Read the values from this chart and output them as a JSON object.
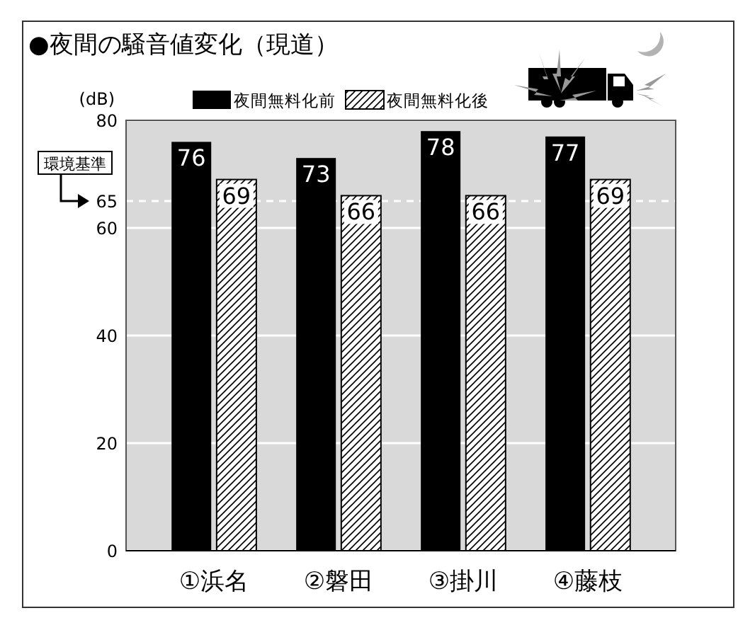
{
  "chart_data": {
    "type": "bar",
    "title": "●夜間の騒音値変化（現道）",
    "ylabel": "(dB)",
    "categories": [
      "①浜名",
      "②磐田",
      "③掛川",
      "④藤枝"
    ],
    "series": [
      {
        "name": "夜間無料化前",
        "color": "#000000",
        "values": [
          76,
          73,
          78,
          77
        ]
      },
      {
        "name": "夜間無料化後",
        "color": "#ffffff",
        "values": [
          69,
          66,
          66,
          69
        ]
      }
    ],
    "ylim": [
      0,
      80
    ],
    "yticks": [
      0,
      20,
      40,
      60,
      65,
      80
    ],
    "grid": "y",
    "legend": "top",
    "data_labels": true,
    "ref_lines": [
      {
        "axis": "y",
        "value": 65,
        "label": "環境基準",
        "color": "#ffffff",
        "line_style": "dashed"
      }
    ]
  }
}
